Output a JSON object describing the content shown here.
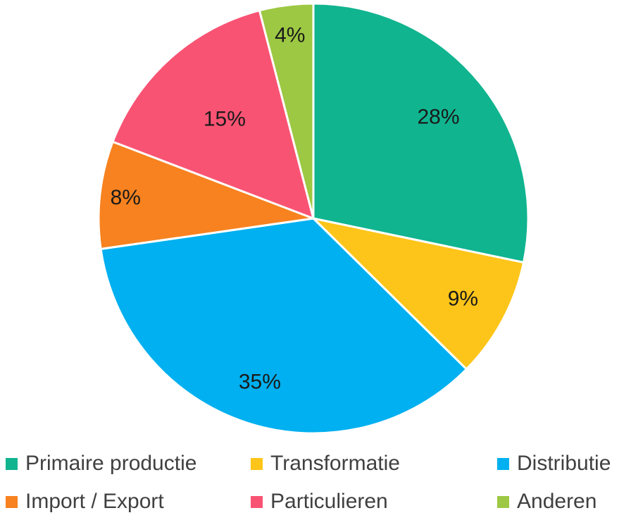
{
  "chart_data": {
    "type": "pie",
    "title": "",
    "legend_position": "bottom",
    "categories": [
      "Primaire productie",
      "Transformatie",
      "Distributie",
      "Import / Export",
      "Particulieren",
      "Anderen"
    ],
    "values": [
      28,
      9,
      35,
      8,
      15,
      4
    ],
    "labels": [
      "28%",
      "9%",
      "35%",
      "8%",
      "15%",
      "4%"
    ],
    "colors": [
      "#10B48F",
      "#FDC519",
      "#00B0F0",
      "#F7821F",
      "#F95373",
      "#9DC843"
    ]
  }
}
